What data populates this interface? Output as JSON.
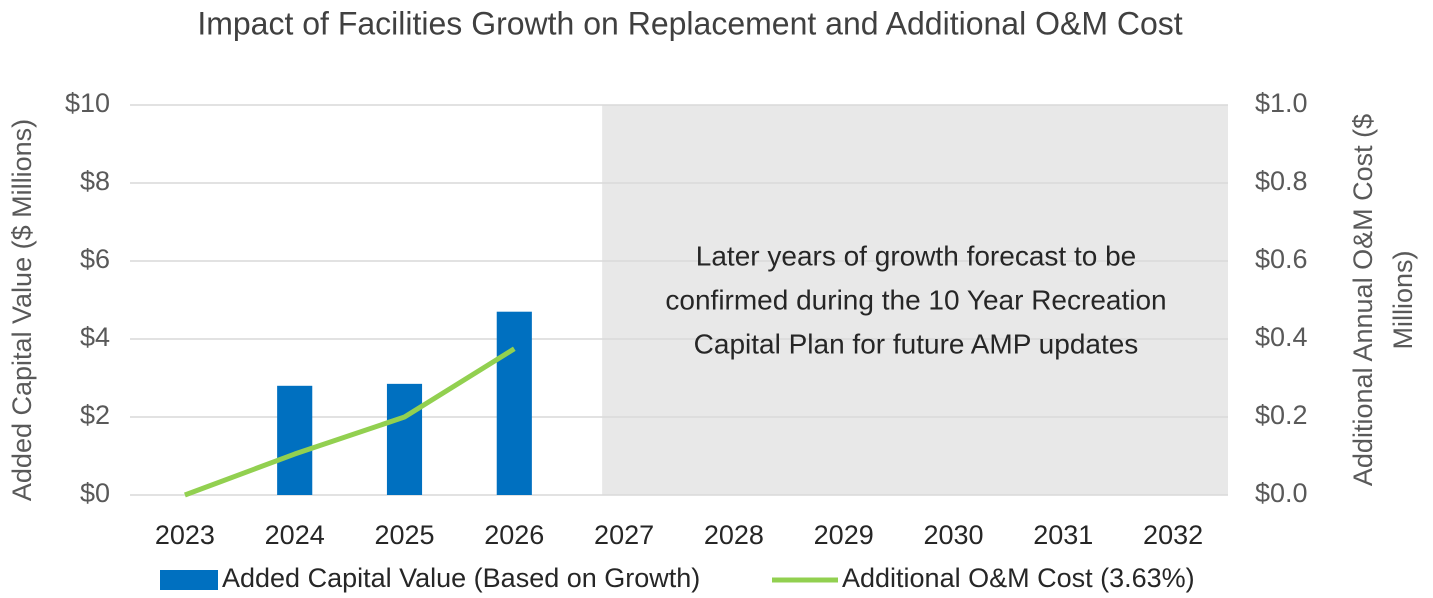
{
  "chart_data": {
    "type": "bar",
    "title": "Impact of Facilities Growth on Replacement and Additional O&M Cost",
    "categories": [
      "2023",
      "2024",
      "2025",
      "2026",
      "2027",
      "2028",
      "2029",
      "2030",
      "2031",
      "2032"
    ],
    "series": [
      {
        "name": "Added Capital Value (Based on Growth)",
        "type": "bar",
        "color": "#0070c0",
        "values": [
          0,
          2.8,
          2.85,
          4.7,
          null,
          null,
          null,
          null,
          null,
          null
        ]
      },
      {
        "name": "Additional O&M Cost (3.63%)",
        "type": "line",
        "axis": "y2",
        "color": "#92d050",
        "values": [
          0,
          0.105,
          0.2,
          0.375,
          null,
          null,
          null,
          null,
          null,
          null
        ]
      }
    ],
    "ylabel": "Added Capital Value ($ Millions)",
    "y2label": [
      "Additional Annual O&M Cost ($",
      "Millions)"
    ],
    "ylim": [
      0,
      10
    ],
    "yticks": [
      {
        "value": 0,
        "label": "$0"
      },
      {
        "value": 2,
        "label": "$2"
      },
      {
        "value": 4,
        "label": "$4"
      },
      {
        "value": 6,
        "label": "$6"
      },
      {
        "value": 8,
        "label": "$8"
      },
      {
        "value": 10,
        "label": "$10"
      }
    ],
    "y2lim": [
      0,
      1
    ],
    "y2ticks": [
      {
        "value": 0,
        "label": "$0.0"
      },
      {
        "value": 0.2,
        "label": "$0.2"
      },
      {
        "value": 0.4,
        "label": "$0.4"
      },
      {
        "value": 0.6,
        "label": "$0.6"
      },
      {
        "value": 0.8,
        "label": "$0.8"
      },
      {
        "value": 1,
        "label": "$1.0"
      }
    ],
    "grid": true,
    "legend": "bottom",
    "shaded_from": "2027",
    "shade_color": "#e8e8e8",
    "annotation": [
      "Later years of growth forecast to be",
      "confirmed during the 10 Year Recreation",
      "Capital Plan for future AMP updates"
    ]
  }
}
